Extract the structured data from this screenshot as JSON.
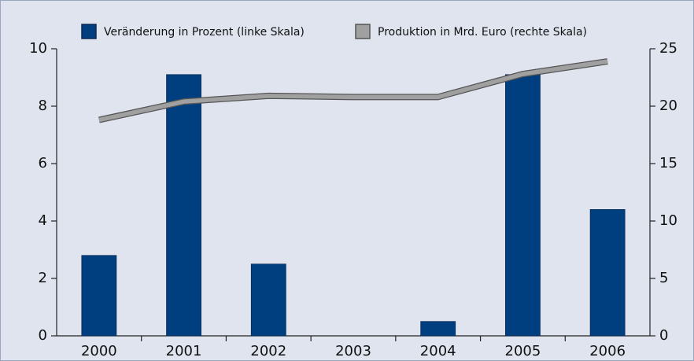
{
  "chart_data": {
    "type": "bar-line",
    "categories": [
      "2000",
      "2001",
      "2002",
      "2003",
      "2004",
      "2005",
      "2006"
    ],
    "series": [
      {
        "name": "Veränderung in Prozent (linke Skala)",
        "type": "bar",
        "color": "#003f7f",
        "values": [
          2.8,
          9.1,
          2.5,
          0,
          0.5,
          9.1,
          4.4
        ]
      },
      {
        "name": "Produktion in Mrd. Euro (rechte Skala)",
        "type": "line",
        "axis": "y2",
        "color": "#a0a0a0",
        "values": [
          18.8,
          20.4,
          20.9,
          20.8,
          20.8,
          22.8,
          23.9
        ]
      }
    ],
    "ylim": [
      0,
      10
    ],
    "yticks": [
      0,
      2,
      4,
      6,
      8,
      10
    ],
    "y2lim": [
      0,
      25
    ],
    "y2ticks": [
      0,
      5,
      10,
      15,
      20,
      25
    ]
  }
}
